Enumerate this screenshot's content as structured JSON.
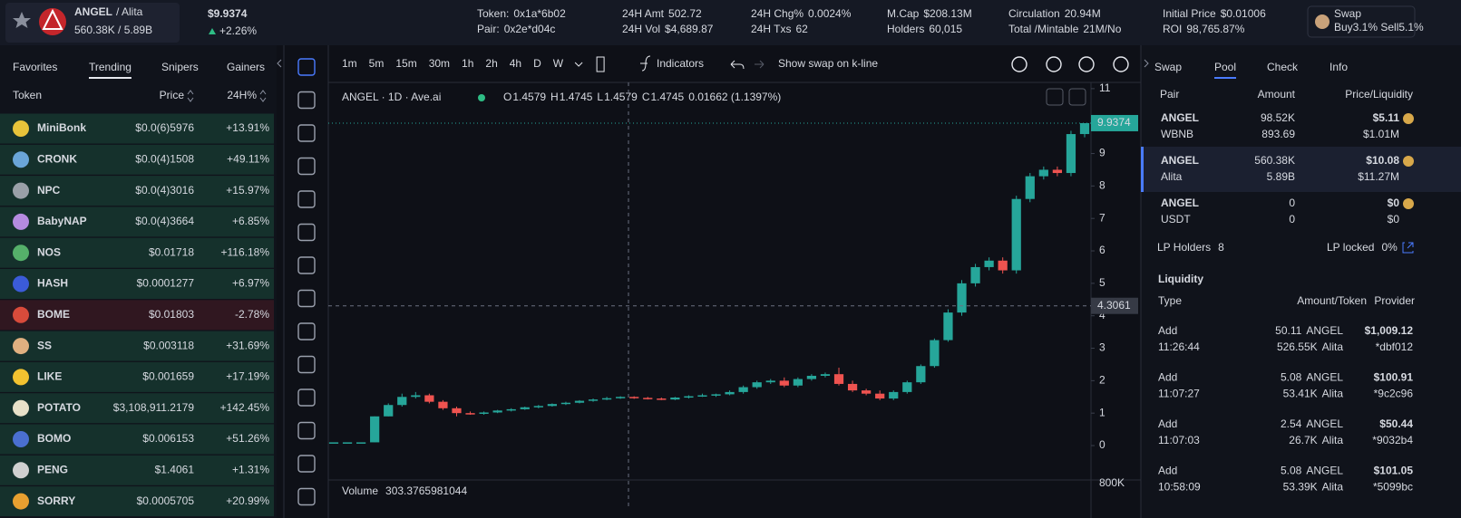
{
  "header": {
    "symbol": "ANGEL",
    "quote": "/ Alita",
    "liquidity": "560.38K / 5.89B",
    "price": "$9.9374",
    "change": "+2.26%",
    "stats": [
      [
        {
          "label": "Token:",
          "value": "0x1a*6b02"
        },
        {
          "label": "Pair:",
          "value": "0x2e*d04c"
        }
      ],
      [
        {
          "label": "24H Amt",
          "value": "502.72"
        },
        {
          "label": "24H Vol",
          "value": "$4,689.87"
        }
      ],
      [
        {
          "label": "24H Chg%",
          "value": "0.0024%"
        },
        {
          "label": "24H Txs",
          "value": "62"
        }
      ],
      [
        {
          "label": "M.Cap",
          "value": "$208.13M"
        },
        {
          "label": "Holders",
          "value": "60,015"
        }
      ],
      [
        {
          "label": "Circulation",
          "value": "20.94M"
        },
        {
          "label": "Total /Mintable",
          "value": "21M/No"
        }
      ],
      [
        {
          "label": "Initial Price",
          "value": "$0.01006"
        },
        {
          "label": "ROI",
          "value": "98,765.87%"
        }
      ]
    ],
    "swap": {
      "label": "Swap",
      "fees": "Buy3.1% Sell5.1%"
    }
  },
  "token_list": {
    "tabs": [
      "Favorites",
      "Trending",
      "Snipers",
      "Gainers"
    ],
    "active_tab": 1,
    "columns": [
      "Token",
      "Price",
      "24H%"
    ],
    "rows": [
      [
        "MiniBonk",
        "$0.0(6)5976",
        "+13.91%"
      ],
      [
        "CRONK",
        "$0.0(4)1508",
        "+49.11%"
      ],
      [
        "NPC",
        "$0.0(4)3016",
        "+15.97%"
      ],
      [
        "BabyNAP",
        "$0.0(4)3664",
        "+6.85%"
      ],
      [
        "NOS",
        "$0.01718",
        "+116.18%"
      ],
      [
        "HASH",
        "$0.0001277",
        "+6.97%"
      ],
      [
        "BOME",
        "$0.01803",
        "-2.78%"
      ],
      [
        "SS",
        "$0.003118",
        "+31.69%"
      ],
      [
        "LIKE",
        "$0.001659",
        "+17.19%"
      ],
      [
        "POTATO",
        "$3,108,911.2179",
        "+142.45%"
      ],
      [
        "BOMO",
        "$0.006153",
        "+51.26%"
      ],
      [
        "PENG",
        "$1.4061",
        "+1.31%"
      ],
      [
        "SORRY",
        "$0.0005705",
        "+20.99%"
      ]
    ]
  },
  "toolbar": {
    "intervals": [
      "1m",
      "5m",
      "15m",
      "30m",
      "1h",
      "2h",
      "4h",
      "D",
      "W"
    ],
    "active_interval": 7,
    "indicators": "Indicators",
    "swap_toggle": "Show swap on k-line",
    "legend_title": "ANGEL · 1D · Ave.ai",
    "ohlc": [
      [
        "O",
        "1.4579"
      ],
      [
        "H",
        "1.4745"
      ],
      [
        "L",
        "1.4579"
      ],
      [
        "C",
        "1.4745"
      ]
    ],
    "ohlc_change": "0.01662 (1.1397%)",
    "volume_label": "Volume",
    "volume_value": "303.3765981044",
    "volume_tick": "800K"
  },
  "chart_data": {
    "type": "candlestick",
    "up_color": "#26a69a",
    "down_color": "#ef5350",
    "ylim": [
      -1.06,
      11.22
    ],
    "yticks": [
      0,
      1,
      2,
      3,
      4,
      5,
      6,
      7,
      8,
      9,
      10,
      11
    ],
    "last_price": 9.9374,
    "crosshair_price": 4.3061,
    "candles": [
      [
        0.1,
        0.1,
        0.1,
        0.1
      ],
      [
        0.1,
        0.1,
        0.1,
        0.1
      ],
      [
        0.1,
        0.1,
        0.1,
        0.1
      ],
      [
        0.1,
        0.9,
        0.1,
        0.9
      ],
      [
        0.9,
        1.3,
        0.9,
        1.25
      ],
      [
        1.25,
        1.6,
        1.2,
        1.5
      ],
      [
        1.5,
        1.65,
        1.45,
        1.55
      ],
      [
        1.55,
        1.6,
        1.3,
        1.35
      ],
      [
        1.35,
        1.4,
        1.1,
        1.15
      ],
      [
        1.15,
        1.2,
        0.9,
        1.0
      ],
      [
        1.0,
        1.05,
        0.95,
        0.98
      ],
      [
        0.98,
        1.05,
        0.95,
        1.02
      ],
      [
        1.02,
        1.1,
        1.0,
        1.08
      ],
      [
        1.08,
        1.15,
        1.05,
        1.12
      ],
      [
        1.12,
        1.2,
        1.1,
        1.18
      ],
      [
        1.18,
        1.25,
        1.15,
        1.22
      ],
      [
        1.22,
        1.3,
        1.2,
        1.28
      ],
      [
        1.28,
        1.35,
        1.25,
        1.32
      ],
      [
        1.32,
        1.4,
        1.3,
        1.38
      ],
      [
        1.38,
        1.45,
        1.35,
        1.42
      ],
      [
        1.42,
        1.5,
        1.4,
        1.46
      ],
      [
        1.46,
        1.52,
        1.44,
        1.5
      ],
      [
        1.5,
        1.52,
        1.44,
        1.47
      ],
      [
        1.47,
        1.5,
        1.42,
        1.45
      ],
      [
        1.45,
        1.48,
        1.4,
        1.42
      ],
      [
        1.42,
        1.5,
        1.4,
        1.48
      ],
      [
        1.48,
        1.55,
        1.45,
        1.52
      ],
      [
        1.52,
        1.6,
        1.5,
        1.55
      ],
      [
        1.55,
        1.6,
        1.5,
        1.58
      ],
      [
        1.58,
        1.7,
        1.55,
        1.65
      ],
      [
        1.65,
        1.85,
        1.6,
        1.8
      ],
      [
        1.8,
        2.0,
        1.75,
        1.95
      ],
      [
        1.95,
        2.05,
        1.9,
        2.0
      ],
      [
        2.0,
        2.1,
        1.8,
        1.85
      ],
      [
        1.85,
        2.1,
        1.8,
        2.05
      ],
      [
        2.05,
        2.2,
        2.0,
        2.15
      ],
      [
        2.15,
        2.25,
        2.1,
        2.2
      ],
      [
        2.2,
        2.4,
        1.85,
        1.9
      ],
      [
        1.9,
        2.0,
        1.65,
        1.7
      ],
      [
        1.7,
        1.75,
        1.55,
        1.6
      ],
      [
        1.6,
        1.7,
        1.4,
        1.45
      ],
      [
        1.45,
        1.7,
        1.4,
        1.65
      ],
      [
        1.65,
        2.0,
        1.6,
        1.95
      ],
      [
        1.95,
        2.5,
        1.9,
        2.45
      ],
      [
        2.45,
        3.3,
        2.4,
        3.25
      ],
      [
        3.25,
        4.2,
        3.2,
        4.1
      ],
      [
        4.1,
        5.1,
        4.0,
        5.0
      ],
      [
        5.0,
        5.6,
        4.9,
        5.5
      ],
      [
        5.5,
        5.8,
        5.4,
        5.7
      ],
      [
        5.7,
        5.8,
        5.3,
        5.4
      ],
      [
        5.4,
        7.7,
        5.3,
        7.6
      ],
      [
        7.6,
        8.4,
        7.5,
        8.3
      ],
      [
        8.3,
        8.6,
        8.2,
        8.5
      ],
      [
        8.5,
        8.6,
        8.3,
        8.4
      ],
      [
        8.4,
        9.7,
        8.3,
        9.6
      ],
      [
        9.6,
        9.9374,
        9.5,
        9.9374
      ]
    ]
  },
  "pool_panel": {
    "tabs": [
      "Swap",
      "Pool",
      "Check",
      "Info"
    ],
    "active_tab": 1,
    "columns": [
      "Pair",
      "Amount",
      "Price/Liquidity"
    ],
    "pairs": [
      {
        "base": "ANGEL",
        "base_amount": "98.52K",
        "price": "$5.11",
        "quote": "WBNB",
        "quote_amount": "893.69",
        "liquidity": "$1.01M"
      },
      {
        "base": "ANGEL",
        "base_amount": "560.38K",
        "price": "$10.08",
        "quote": "Alita",
        "quote_amount": "5.89B",
        "liquidity": "$11.27M"
      },
      {
        "base": "ANGEL",
        "base_amount": "0",
        "price": "$0",
        "quote": "USDT",
        "quote_amount": "0",
        "liquidity": "$0"
      }
    ],
    "active_pair": 1,
    "lp_holders_label": "LP Holders",
    "lp_holders": "8",
    "lp_locked_label": "LP locked",
    "lp_locked": "0%",
    "liquidity_title": "Liquidity",
    "liquidity_columns": [
      "Type",
      "Amount/Token",
      "Provider"
    ],
    "events": [
      {
        "type": "Add",
        "time": "11:26:44",
        "amount1": "50.11",
        "token1": "ANGEL",
        "amount2": "526.55K",
        "token2": "Alita",
        "value": "$1,009.12",
        "provider": "*dbf012"
      },
      {
        "type": "Add",
        "time": "11:07:27",
        "amount1": "5.08",
        "token1": "ANGEL",
        "amount2": "53.41K",
        "token2": "Alita",
        "value": "$100.91",
        "provider": "*9c2c96"
      },
      {
        "type": "Add",
        "time": "11:07:03",
        "amount1": "2.54",
        "token1": "ANGEL",
        "amount2": "26.7K",
        "token2": "Alita",
        "value": "$50.44",
        "provider": "*9032b4"
      },
      {
        "type": "Add",
        "time": "10:58:09",
        "amount1": "5.08",
        "token1": "ANGEL",
        "amount2": "53.39K",
        "token2": "Alita",
        "value": "$101.05",
        "provider": "*5099bc"
      }
    ]
  }
}
